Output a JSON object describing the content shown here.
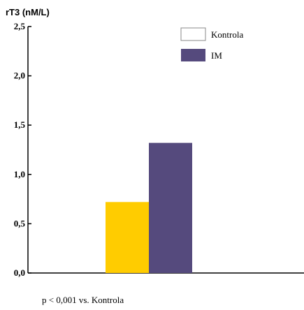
{
  "chart_data": {
    "type": "bar",
    "title": "",
    "ylabel": "rT3 (nM/L)",
    "xlabel": "",
    "ylim": [
      0,
      2.5
    ],
    "yticks": [
      {
        "value": 0.0,
        "label": "0,0"
      },
      {
        "value": 0.5,
        "label": "0,5"
      },
      {
        "value": 1.0,
        "label": "1,0"
      },
      {
        "value": 1.5,
        "label": "1,5"
      },
      {
        "value": 2.0,
        "label": "2,0"
      },
      {
        "value": 2.5,
        "label": "2,5"
      }
    ],
    "series": [
      {
        "name": "Kontrola",
        "value": 0.72,
        "color": "#ffcc00"
      },
      {
        "name": "IM",
        "value": 1.32,
        "color": "#554a7d"
      }
    ],
    "legend": {
      "placement": "top-right",
      "items": [
        {
          "label": "Kontrola",
          "swatch": "#ffffff"
        },
        {
          "label": "IM",
          "swatch": "#554a7d"
        }
      ]
    },
    "grid": false,
    "annotation": "p < 0,001 vs. Kontrola"
  }
}
